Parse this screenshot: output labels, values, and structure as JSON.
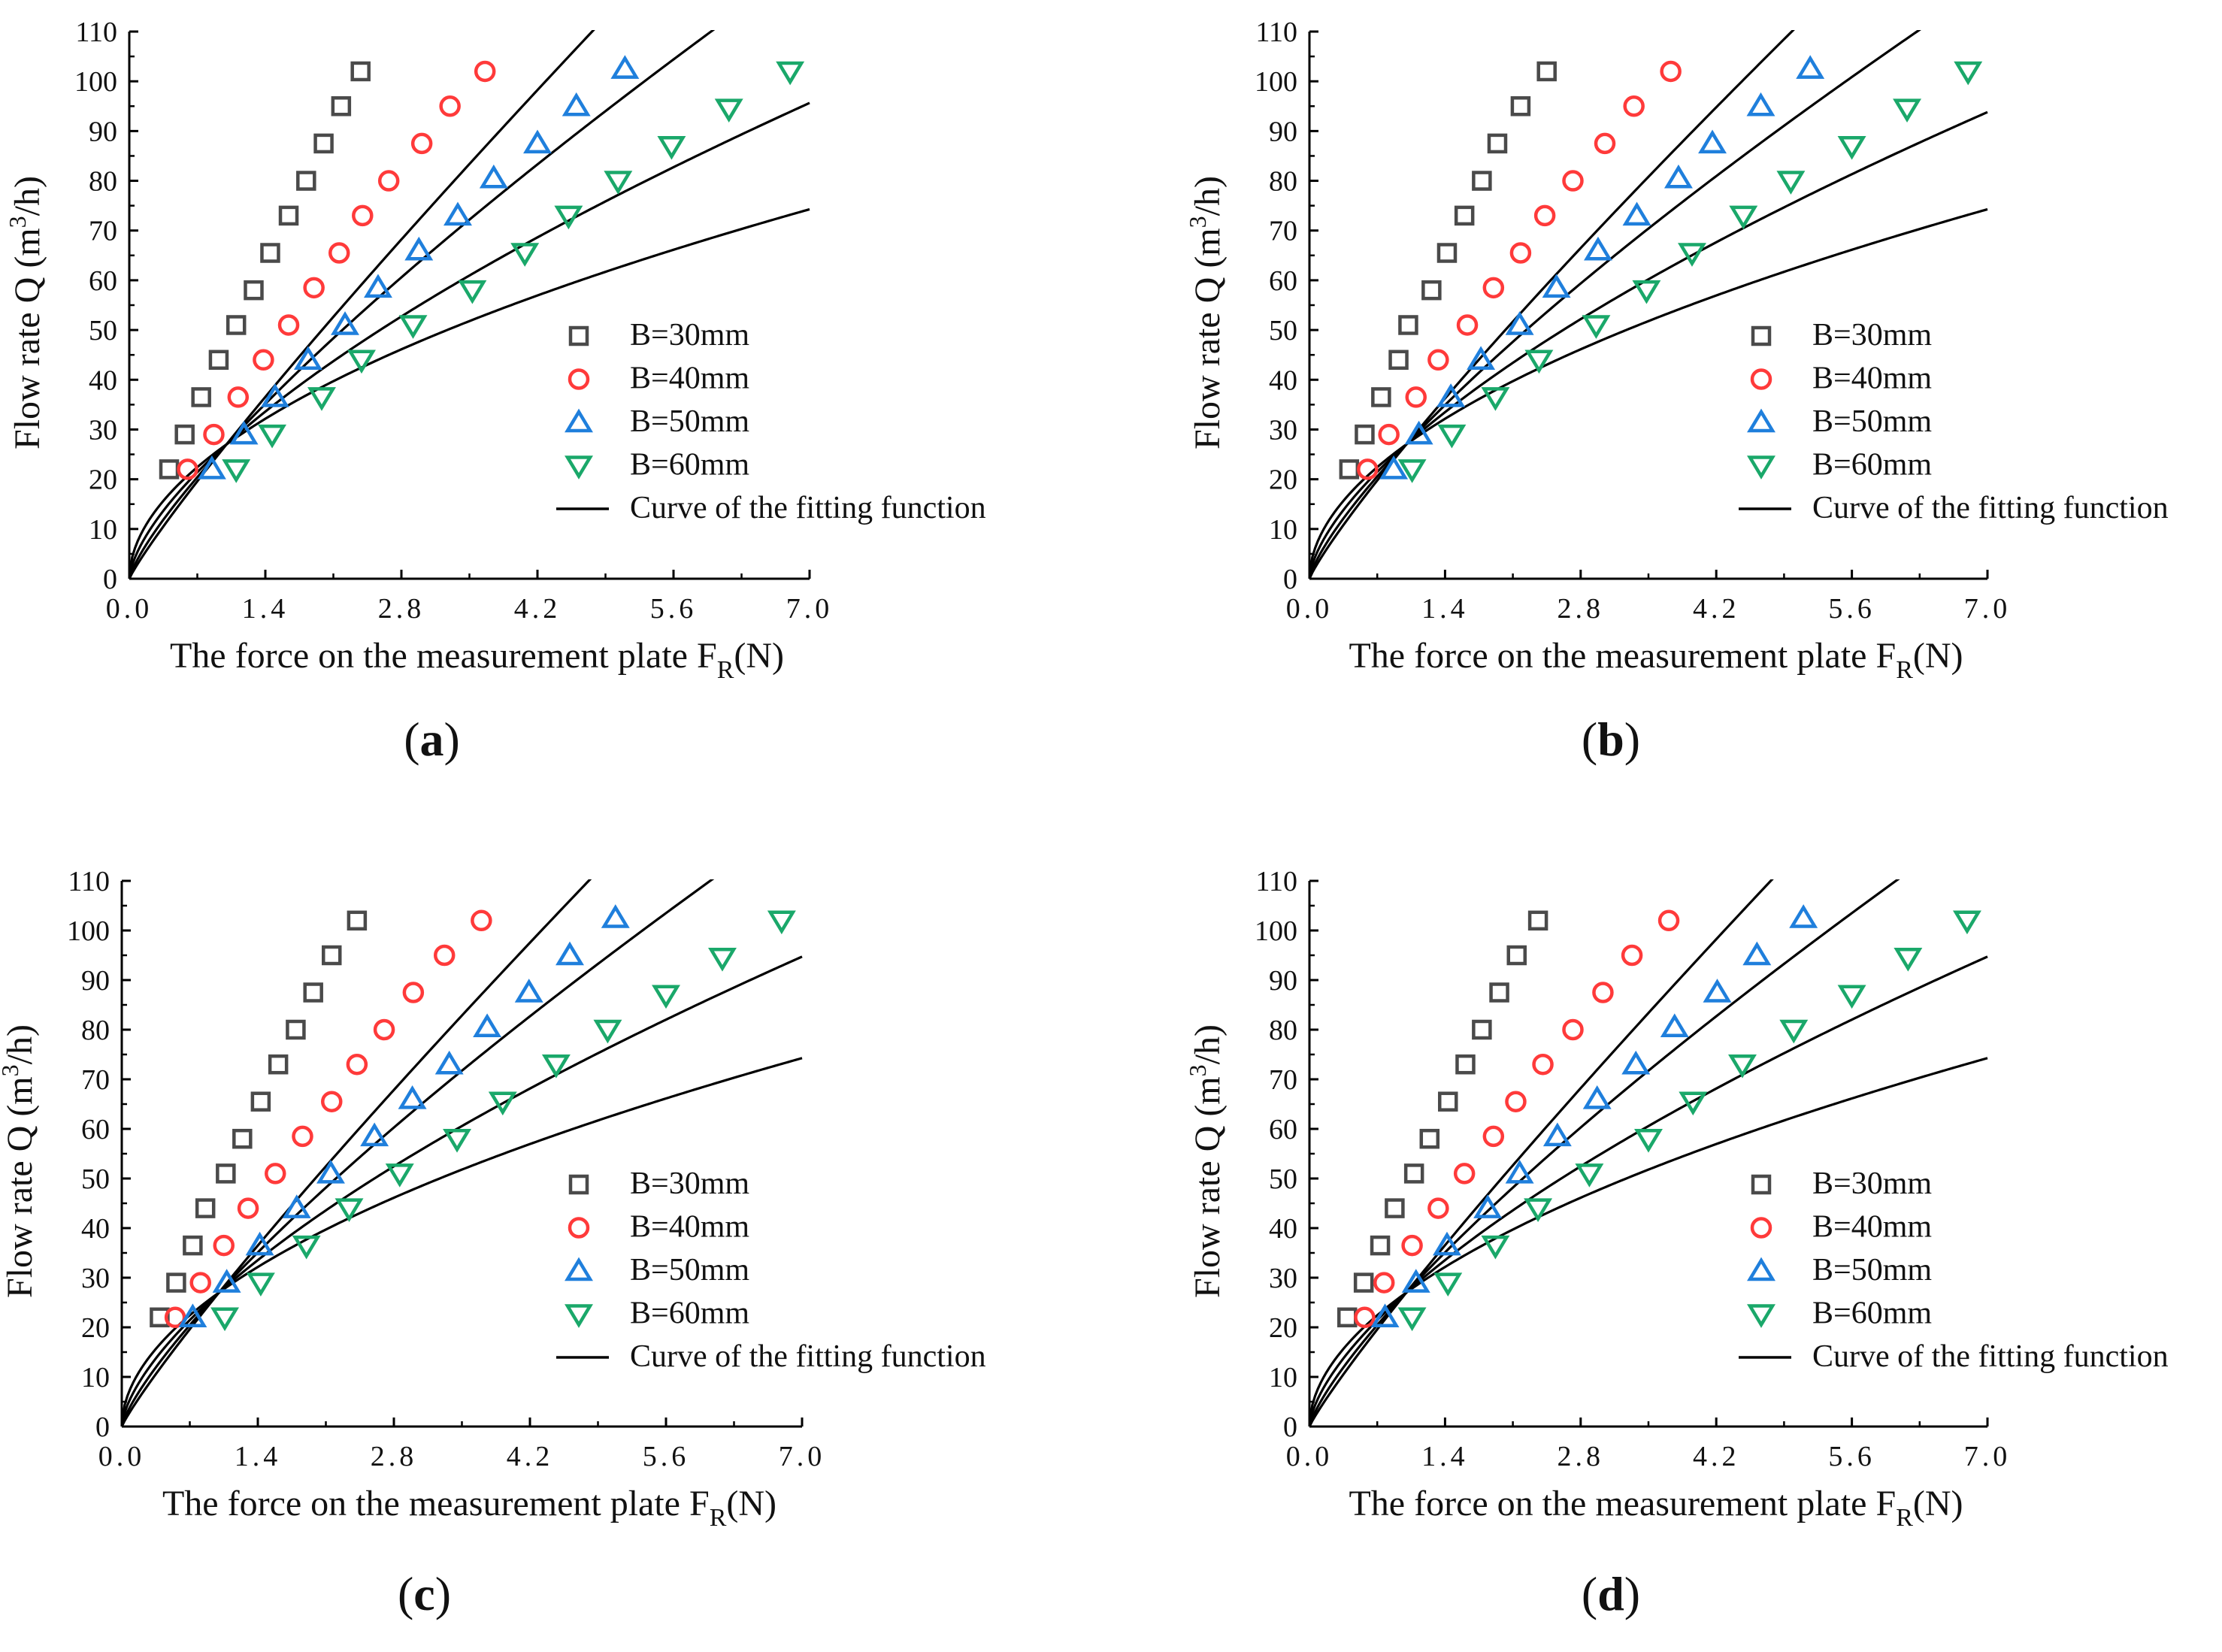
{
  "colors": {
    "B30": "#4a4a4a",
    "B40": "#ff3a3a",
    "B50": "#1f7fdc",
    "B60": "#1aa86a",
    "fit": "#000000"
  },
  "figure": {
    "x_ticks": [
      "0.0",
      "1.4",
      "2.8",
      "4.2",
      "5.6",
      "7.0"
    ],
    "y_ticks": [
      "0",
      "10",
      "20",
      "30",
      "40",
      "50",
      "60",
      "70",
      "80",
      "90",
      "100",
      "110"
    ],
    "xlabel_main": "The force on the measurement plate F",
    "xlabel_sub": "R",
    "xlabel_tail": "(N)",
    "ylabel_main": "Flow rate Q (m",
    "ylabel_sup": "3",
    "ylabel_tail": "/h)",
    "legend": {
      "b30": "B=30mm",
      "b40": "B=40mm",
      "b50": "B=50mm",
      "b60": "B=60mm",
      "fit": "Curve of the fitting function"
    },
    "panel_labels": [
      "a",
      "b",
      "c",
      "d"
    ]
  },
  "chart_data": [
    {
      "type": "scatter",
      "panel": "a",
      "title": "",
      "xlabel": "The force on the measurement plate FR(N)",
      "ylabel": "Flow rate Q (m3/h)",
      "xlim": [
        0,
        7.0
      ],
      "ylim": [
        0,
        110
      ],
      "x_ticks": [
        0,
        1.4,
        2.8,
        4.2,
        5.6,
        7.0
      ],
      "y_ticks": [
        0,
        10,
        20,
        30,
        40,
        50,
        60,
        70,
        80,
        90,
        100,
        110
      ],
      "series": [
        {
          "name": "B=30mm",
          "marker": "square",
          "x": [
            0.41,
            0.57,
            0.74,
            0.92,
            1.1,
            1.28,
            1.45,
            1.64,
            1.82,
            2.0,
            2.18,
            2.38
          ],
          "y": [
            22,
            29,
            36.5,
            44,
            51,
            58,
            65.5,
            73,
            80,
            87.5,
            95,
            102
          ]
        },
        {
          "name": "B=40mm",
          "marker": "circle",
          "x": [
            0.6,
            0.87,
            1.12,
            1.38,
            1.64,
            1.9,
            2.16,
            2.4,
            2.67,
            3.01,
            3.3,
            3.66
          ],
          "y": [
            22,
            29,
            36.5,
            44,
            51,
            58.5,
            65.5,
            73,
            80,
            87.5,
            95,
            102
          ]
        },
        {
          "name": "B=50mm",
          "marker": "triangle-up",
          "x": [
            0.85,
            1.18,
            1.5,
            1.84,
            2.22,
            2.56,
            2.98,
            3.38,
            3.75,
            4.2,
            4.6,
            5.1
          ],
          "y": [
            22,
            29,
            36.5,
            44,
            51,
            58.5,
            66,
            73,
            80.5,
            87.5,
            95,
            102.5
          ]
        },
        {
          "name": "B=60mm",
          "marker": "triangle-down",
          "x": [
            1.1,
            1.47,
            1.98,
            2.39,
            2.92,
            3.53,
            4.07,
            4.52,
            5.03,
            5.58,
            6.17,
            6.8
          ],
          "y": [
            22,
            29,
            36.5,
            44,
            51,
            58,
            65.5,
            73,
            80,
            87,
            94.5,
            102
          ]
        }
      ],
      "fit_curves": [
        {
          "name": "B=30mm",
          "a": 27,
          "b": 0.9
        },
        {
          "name": "B=40mm",
          "a": 27,
          "b": 0.785
        },
        {
          "name": "B=50mm",
          "a": 27,
          "b": 0.65
        },
        {
          "name": "B=60mm",
          "a": 27,
          "b": 0.52
        }
      ]
    },
    {
      "type": "scatter",
      "panel": "b",
      "title": "",
      "xlabel": "The force on the measurement plate FR(N)",
      "ylabel": "Flow rate Q (m3/h)",
      "xlim": [
        0,
        7.0
      ],
      "ylim": [
        0,
        110
      ],
      "x_ticks": [
        0,
        1.4,
        2.8,
        4.2,
        5.6,
        7.0
      ],
      "y_ticks": [
        0,
        10,
        20,
        30,
        40,
        50,
        60,
        70,
        80,
        90,
        100,
        110
      ],
      "series": [
        {
          "name": "B=30mm",
          "marker": "square",
          "x": [
            0.41,
            0.57,
            0.74,
            0.92,
            1.02,
            1.26,
            1.42,
            1.6,
            1.78,
            1.94,
            2.18,
            2.45
          ],
          "y": [
            22,
            29,
            36.5,
            44,
            51,
            58,
            65.5,
            73,
            80,
            87.5,
            95,
            102
          ]
        },
        {
          "name": "B=40mm",
          "marker": "circle",
          "x": [
            0.6,
            0.82,
            1.1,
            1.33,
            1.63,
            1.9,
            2.18,
            2.43,
            2.72,
            3.05,
            3.35,
            3.73
          ],
          "y": [
            22,
            29,
            36.5,
            44,
            51,
            58.5,
            65.5,
            73,
            80,
            87.5,
            95,
            102
          ]
        },
        {
          "name": "B=50mm",
          "marker": "triangle-up",
          "x": [
            0.87,
            1.13,
            1.46,
            1.77,
            2.17,
            2.55,
            2.98,
            3.38,
            3.81,
            4.16,
            4.66,
            5.17
          ],
          "y": [
            22,
            29,
            36.5,
            44,
            51,
            58.5,
            66,
            73,
            80.5,
            87.5,
            95,
            102.5
          ]
        },
        {
          "name": "B=60mm",
          "marker": "triangle-down",
          "x": [
            1.06,
            1.47,
            1.92,
            2.37,
            2.96,
            3.48,
            3.95,
            4.48,
            4.97,
            5.6,
            6.17,
            6.8
          ],
          "y": [
            22,
            29,
            36.5,
            44,
            51,
            58,
            65.5,
            73,
            80,
            87,
            94.5,
            102
          ]
        }
      ],
      "fit_curves": [
        {
          "name": "B=30mm",
          "a": 27,
          "b": 0.875
        },
        {
          "name": "B=40mm",
          "a": 27,
          "b": 0.765
        },
        {
          "name": "B=50mm",
          "a": 27,
          "b": 0.64
        },
        {
          "name": "B=60mm",
          "a": 27,
          "b": 0.52
        }
      ]
    },
    {
      "type": "scatter",
      "panel": "c",
      "title": "",
      "xlabel": "The force on the measurement plate FR(N)",
      "ylabel": "Flow rate Q (m3/h)",
      "xlim": [
        0,
        7.0
      ],
      "ylim": [
        0,
        110
      ],
      "x_ticks": [
        0,
        1.4,
        2.8,
        4.2,
        5.6,
        7.0
      ],
      "y_ticks": [
        0,
        10,
        20,
        30,
        40,
        50,
        60,
        70,
        80,
        90,
        100,
        110
      ],
      "series": [
        {
          "name": "B=30mm",
          "marker": "square",
          "x": [
            0.39,
            0.56,
            0.73,
            0.86,
            1.07,
            1.24,
            1.43,
            1.61,
            1.79,
            1.97,
            2.16,
            2.42
          ],
          "y": [
            22,
            29,
            36.5,
            44,
            51,
            58,
            65.5,
            73,
            80,
            87.5,
            95,
            102
          ]
        },
        {
          "name": "B=40mm",
          "marker": "circle",
          "x": [
            0.55,
            0.81,
            1.05,
            1.3,
            1.58,
            1.86,
            2.16,
            2.42,
            2.7,
            3.0,
            3.32,
            3.7
          ],
          "y": [
            22,
            29,
            36.5,
            44,
            51,
            58.5,
            65.5,
            73,
            80,
            87.5,
            95,
            102
          ]
        },
        {
          "name": "B=50mm",
          "marker": "triangle-up",
          "x": [
            0.73,
            1.08,
            1.42,
            1.8,
            2.15,
            2.6,
            2.99,
            3.37,
            3.76,
            4.19,
            4.61,
            5.08
          ],
          "y": [
            22,
            29,
            36.5,
            44,
            51,
            58.5,
            66,
            73,
            80.5,
            87.5,
            95,
            102.5
          ]
        },
        {
          "name": "B=60mm",
          "marker": "triangle-down",
          "x": [
            1.06,
            1.43,
            1.9,
            2.34,
            2.86,
            3.45,
            3.92,
            4.47,
            5.0,
            5.6,
            6.18,
            6.79
          ],
          "y": [
            22,
            29,
            36.5,
            44,
            51,
            58,
            65.5,
            73,
            80,
            87,
            94.5,
            102
          ]
        }
      ],
      "fit_curves": [
        {
          "name": "B=30mm",
          "a": 27,
          "b": 0.895
        },
        {
          "name": "B=40mm",
          "a": 27,
          "b": 0.78
        },
        {
          "name": "B=50mm",
          "a": 27,
          "b": 0.645
        },
        {
          "name": "B=60mm",
          "a": 27,
          "b": 0.52
        }
      ]
    },
    {
      "type": "scatter",
      "panel": "d",
      "title": "",
      "xlabel": "The force on the measurement plate FR(N)",
      "ylabel": "Flow rate Q (m3/h)",
      "xlim": [
        0,
        7.0
      ],
      "ylim": [
        0,
        110
      ],
      "x_ticks": [
        0,
        1.4,
        2.8,
        4.2,
        5.6,
        7.0
      ],
      "y_ticks": [
        0,
        10,
        20,
        30,
        40,
        50,
        60,
        70,
        80,
        90,
        100,
        110
      ],
      "series": [
        {
          "name": "B=30mm",
          "marker": "square",
          "x": [
            0.39,
            0.56,
            0.73,
            0.88,
            1.08,
            1.24,
            1.43,
            1.61,
            1.78,
            1.96,
            2.14,
            2.36
          ],
          "y": [
            22,
            29,
            36.5,
            44,
            51,
            58,
            65.5,
            73,
            80,
            87.5,
            95,
            102
          ]
        },
        {
          "name": "B=40mm",
          "marker": "circle",
          "x": [
            0.57,
            0.77,
            1.06,
            1.33,
            1.6,
            1.9,
            2.13,
            2.41,
            2.72,
            3.03,
            3.33,
            3.71
          ],
          "y": [
            22,
            29,
            36.5,
            44,
            51,
            58.5,
            65.5,
            73,
            80,
            87.5,
            95,
            102
          ]
        },
        {
          "name": "B=50mm",
          "marker": "triangle-up",
          "x": [
            0.78,
            1.1,
            1.42,
            1.84,
            2.17,
            2.56,
            2.97,
            3.37,
            3.77,
            4.21,
            4.62,
            5.1
          ],
          "y": [
            22,
            29,
            36.5,
            44,
            51,
            58.5,
            66,
            73,
            80.5,
            87.5,
            95,
            102.5
          ]
        },
        {
          "name": "B=60mm",
          "marker": "triangle-down",
          "x": [
            1.06,
            1.43,
            1.92,
            2.36,
            2.89,
            3.5,
            3.96,
            4.47,
            5.0,
            5.6,
            6.18,
            6.79
          ],
          "y": [
            22,
            29,
            36.5,
            44,
            51,
            58,
            65.5,
            73,
            80,
            87,
            94.5,
            102
          ]
        }
      ],
      "fit_curves": [
        {
          "name": "B=30mm",
          "a": 27,
          "b": 0.9
        },
        {
          "name": "B=40mm",
          "a": 27,
          "b": 0.78
        },
        {
          "name": "B=50mm",
          "a": 27,
          "b": 0.645
        },
        {
          "name": "B=60mm",
          "a": 27,
          "b": 0.52
        }
      ]
    }
  ]
}
